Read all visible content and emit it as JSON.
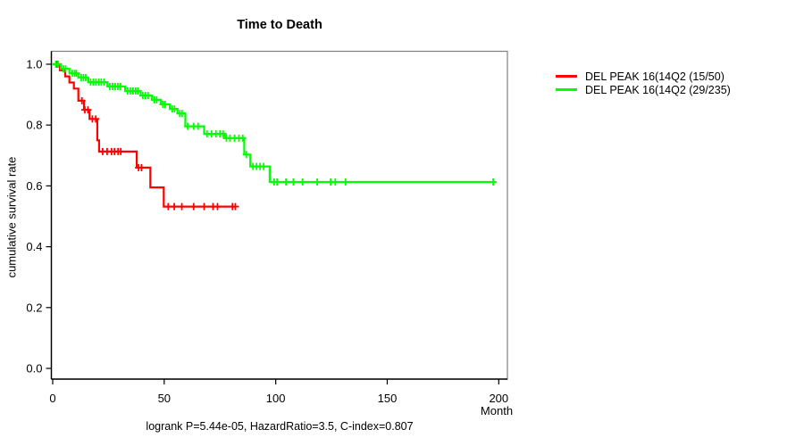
{
  "chart_data": {
    "type": "line",
    "subtype": "kaplan_meier_step",
    "title": "Time to Death",
    "xlabel": "Month",
    "ylabel": "cumulative survival rate",
    "footer": "logrank P=5.44e-05, HazardRatio=3.5, C-index=0.807",
    "xlim": [
      0,
      200
    ],
    "ylim": [
      0.0,
      1.0
    ],
    "xticks": [
      0,
      50,
      100,
      150,
      200
    ],
    "xtick_labels": [
      "0",
      "50",
      "100",
      "150",
      "200"
    ],
    "yticks": [
      0.0,
      0.2,
      0.4,
      0.6,
      0.8,
      1.0
    ],
    "ytick_labels": [
      "0.0",
      "0.2",
      "0.4",
      "0.6",
      "0.8",
      "1.0"
    ],
    "grid": false,
    "legend_position": "right-outside",
    "axis_color": "#000000",
    "box_color": "#808080",
    "series": [
      {
        "name": "DEL PEAK 16(14Q2 (15/50)",
        "color": "#ff0000",
        "steps": [
          [
            0,
            1.0
          ],
          [
            3.2,
            0.98
          ],
          [
            5.6,
            0.96
          ],
          [
            7.5,
            0.94
          ],
          [
            9.5,
            0.92
          ],
          [
            11.5,
            0.88
          ],
          [
            14,
            0.85
          ],
          [
            16.5,
            0.82
          ],
          [
            20,
            0.75
          ],
          [
            20.8,
            0.713
          ],
          [
            37.7,
            0.66
          ],
          [
            43.8,
            0.595
          ],
          [
            49.8,
            0.532
          ]
        ],
        "end_time": 82.2,
        "censors": [
          [
            2,
            1.0
          ],
          [
            13.1,
            0.88
          ],
          [
            14.4,
            0.85
          ],
          [
            15.8,
            0.85
          ],
          [
            17.8,
            0.82
          ],
          [
            19.3,
            0.82
          ],
          [
            22.4,
            0.713
          ],
          [
            24.4,
            0.713
          ],
          [
            26.4,
            0.713
          ],
          [
            27.7,
            0.713
          ],
          [
            29.3,
            0.713
          ],
          [
            30.5,
            0.713
          ],
          [
            38.5,
            0.66
          ],
          [
            39.8,
            0.66
          ],
          [
            51.8,
            0.532
          ],
          [
            54.5,
            0.532
          ],
          [
            57.9,
            0.532
          ],
          [
            63.2,
            0.532
          ],
          [
            67.9,
            0.532
          ],
          [
            71.9,
            0.532
          ],
          [
            73.9,
            0.532
          ],
          [
            80.6,
            0.532
          ],
          [
            81.9,
            0.532
          ]
        ]
      },
      {
        "name": "DEL PEAK 16(14Q2 (29/235)",
        "color": "#00ff00",
        "steps": [
          [
            0,
            1.0
          ],
          [
            3.6,
            0.985
          ],
          [
            7.5,
            0.97
          ],
          [
            11.5,
            0.956
          ],
          [
            16,
            0.941
          ],
          [
            24.5,
            0.927
          ],
          [
            32.5,
            0.912
          ],
          [
            39.5,
            0.897
          ],
          [
            44.5,
            0.883
          ],
          [
            48.5,
            0.868
          ],
          [
            52.5,
            0.853
          ],
          [
            56,
            0.838
          ],
          [
            59.5,
            0.796
          ],
          [
            67.9,
            0.771
          ],
          [
            77.2,
            0.757
          ],
          [
            85.9,
            0.703
          ],
          [
            88.6,
            0.664
          ],
          [
            97.3,
            0.613
          ]
        ],
        "end_time": 198,
        "censors": [
          [
            1.4,
            1.0
          ],
          [
            2.4,
            1.0
          ],
          [
            4.8,
            0.985
          ],
          [
            5.8,
            0.985
          ],
          [
            8.8,
            0.97
          ],
          [
            9.8,
            0.97
          ],
          [
            10.6,
            0.97
          ],
          [
            12.8,
            0.956
          ],
          [
            13.8,
            0.956
          ],
          [
            14.8,
            0.956
          ],
          [
            17,
            0.941
          ],
          [
            18.2,
            0.941
          ],
          [
            19.4,
            0.941
          ],
          [
            20.6,
            0.941
          ],
          [
            21.8,
            0.941
          ],
          [
            23,
            0.941
          ],
          [
            25.6,
            0.927
          ],
          [
            26.8,
            0.927
          ],
          [
            28,
            0.927
          ],
          [
            29.2,
            0.927
          ],
          [
            30.4,
            0.927
          ],
          [
            33.6,
            0.912
          ],
          [
            34.8,
            0.912
          ],
          [
            36,
            0.912
          ],
          [
            37.2,
            0.912
          ],
          [
            38.2,
            0.912
          ],
          [
            40.4,
            0.897
          ],
          [
            41.6,
            0.897
          ],
          [
            42.8,
            0.897
          ],
          [
            45.6,
            0.883
          ],
          [
            46.6,
            0.883
          ],
          [
            49.4,
            0.868
          ],
          [
            50.4,
            0.868
          ],
          [
            53.6,
            0.853
          ],
          [
            54.6,
            0.853
          ],
          [
            57,
            0.838
          ],
          [
            58,
            0.838
          ],
          [
            60.5,
            0.796
          ],
          [
            63.2,
            0.796
          ],
          [
            65.2,
            0.796
          ],
          [
            69.2,
            0.771
          ],
          [
            71.2,
            0.771
          ],
          [
            73.2,
            0.771
          ],
          [
            75,
            0.771
          ],
          [
            76.4,
            0.771
          ],
          [
            77.9,
            0.757
          ],
          [
            79.5,
            0.757
          ],
          [
            81.5,
            0.757
          ],
          [
            83.5,
            0.757
          ],
          [
            85.2,
            0.757
          ],
          [
            86.8,
            0.703
          ],
          [
            89.8,
            0.664
          ],
          [
            91.4,
            0.664
          ],
          [
            93,
            0.664
          ],
          [
            94.6,
            0.664
          ],
          [
            99.3,
            0.613
          ],
          [
            100.6,
            0.613
          ],
          [
            104.6,
            0.613
          ],
          [
            107.9,
            0.613
          ],
          [
            112,
            0.613
          ],
          [
            118.6,
            0.613
          ],
          [
            124.6,
            0.613
          ],
          [
            126.7,
            0.613
          ],
          [
            131.3,
            0.613
          ],
          [
            197.5,
            0.613
          ]
        ]
      }
    ]
  }
}
